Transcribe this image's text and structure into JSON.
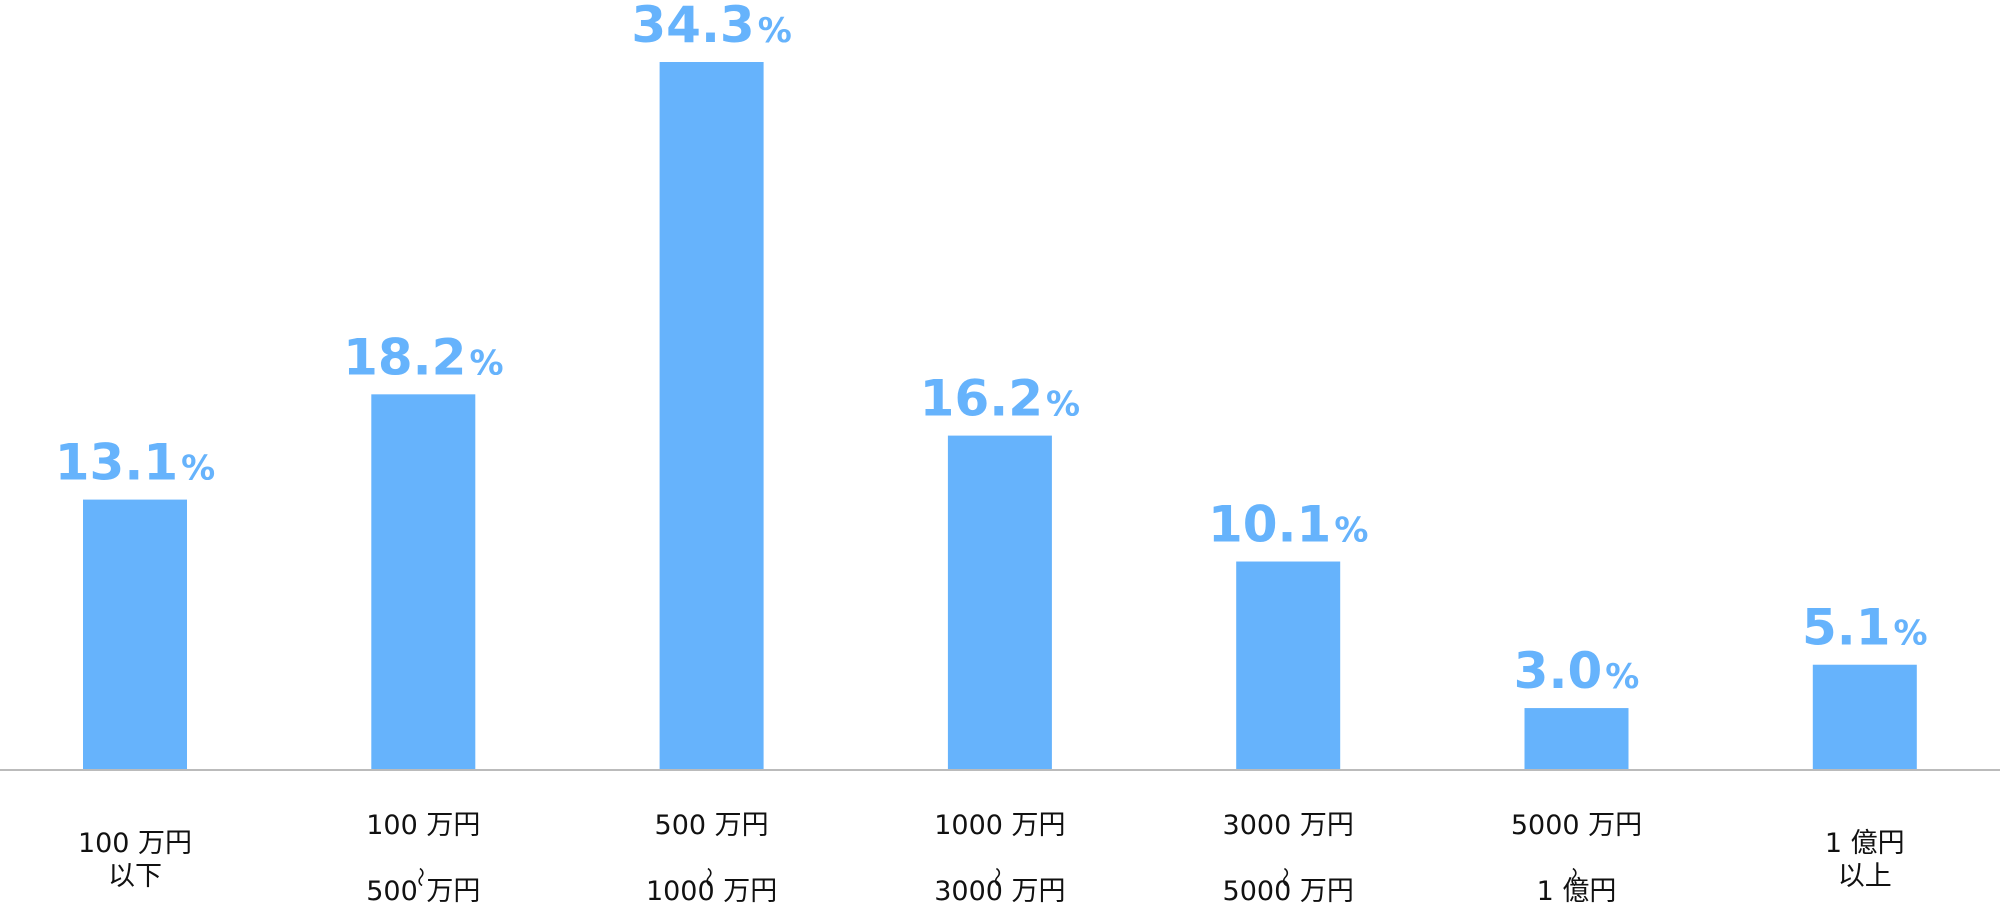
{
  "chart_data": {
    "type": "bar",
    "categories": [
      [
        "100 万円",
        "以下"
      ],
      [
        "100 万円",
        "〜",
        "500 万円"
      ],
      [
        "500 万円",
        "〜",
        "1000 万円"
      ],
      [
        "1000 万円",
        "〜",
        "3000 万円"
      ],
      [
        "3000 万円",
        "〜",
        "5000 万円"
      ],
      [
        "5000 万円",
        "〜",
        "1 億円"
      ],
      [
        "1 億円",
        "以上"
      ]
    ],
    "values": [
      13.1,
      18.2,
      34.3,
      16.2,
      10.1,
      3.0,
      5.1
    ],
    "value_labels": [
      "13.1",
      "18.2",
      "34.3",
      "16.2",
      "10.1",
      "3.0",
      "5.1"
    ],
    "unit_label": "%",
    "ylim": [
      0,
      34.3
    ],
    "grid": false,
    "colors": {
      "bar": "#66b3fc",
      "value_label": "#66b3fc",
      "baseline": "#bbbbbb",
      "category_text": "#111111"
    }
  }
}
